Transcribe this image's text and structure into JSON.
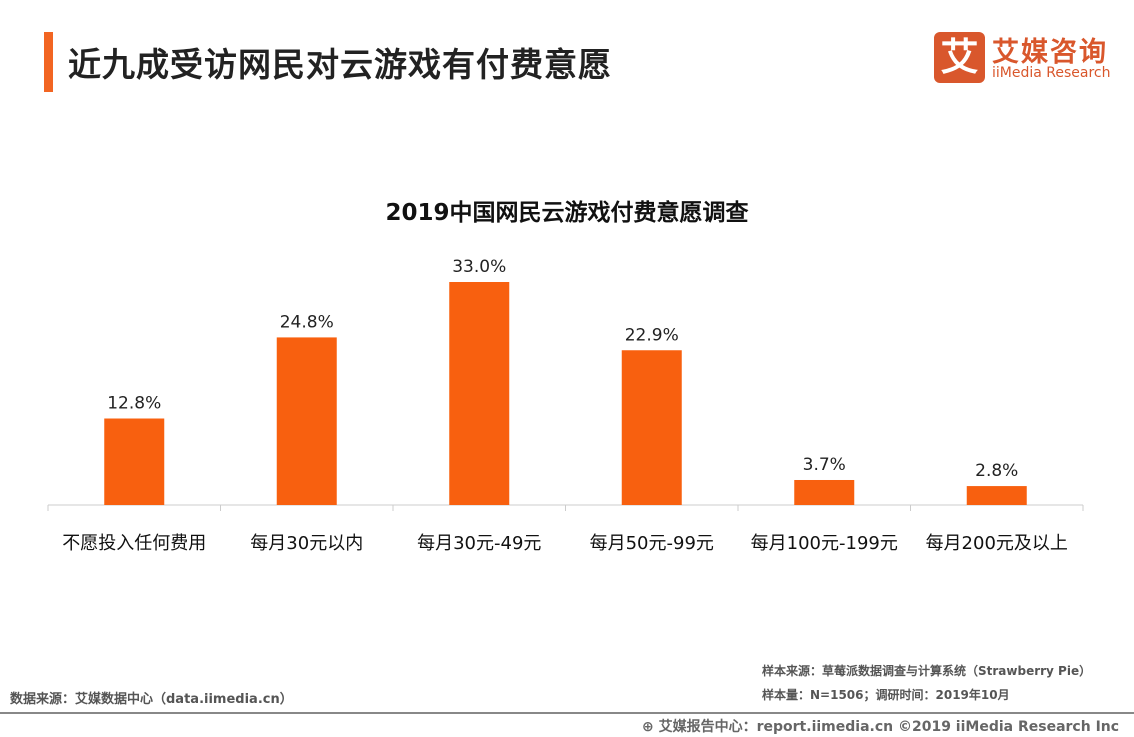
{
  "header": {
    "title": "近九成受访网民对云游戏有付费意愿",
    "accent_color": "#f26522"
  },
  "logo": {
    "mark": "艾",
    "name_cn": "艾媒咨询",
    "name_en": "iiMedia Research",
    "color": "#d9572c"
  },
  "chart_data": {
    "type": "bar",
    "title": "2019中国网民云游戏付费意愿调查",
    "categories": [
      "不愿投入任何费用",
      "每月30元以内",
      "每月30元-49元",
      "每月50元-99元",
      "每月100元-199元",
      "每月200元及以上"
    ],
    "values": [
      12.8,
      24.8,
      33.0,
      22.9,
      3.7,
      2.8
    ],
    "data_labels": [
      "12.8%",
      "24.8%",
      "33.0%",
      "22.9%",
      "3.7%",
      "2.8%"
    ],
    "unit": "%",
    "ylim": [
      0,
      33
    ],
    "grid": false,
    "bar_color": "#f8600f"
  },
  "footer": {
    "data_source": "数据来源：艾媒数据中心（data.iimedia.cn）",
    "sample_source": "样本来源：草莓派数据调查与计算系统（Strawberry Pie）",
    "sample_info": "样本量：N=1506；调研时间：2019年10月",
    "report_center": "艾媒报告中心：report.iimedia.cn ©2019  iiMedia Research  Inc"
  }
}
